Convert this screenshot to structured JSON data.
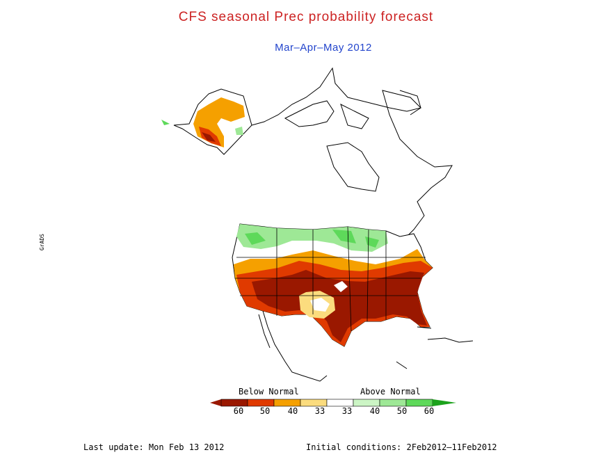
{
  "title": "CFS seasonal Prec probability forecast",
  "subtitle": "Mar–Apr–May 2012",
  "colors": {
    "title": "#cc2222",
    "subtitle": "#2244cc",
    "bn60": "#9a1800",
    "bn50": "#e03a00",
    "bn40": "#f5a000",
    "bn33": "#fbdc7e",
    "neutral": "#ffffff",
    "an33": "#ccf5c5",
    "an40": "#9ee896",
    "an50": "#5ed95a",
    "an60": "#1ca21c"
  },
  "legend": {
    "below_label": "Below Normal",
    "above_label": "Above Normal",
    "ticks": [
      "60",
      "50",
      "40",
      "33",
      "33",
      "40",
      "50",
      "60"
    ]
  },
  "side_text": "GrADS",
  "footer": {
    "last_update": "Last update: Mon Feb 13 2012",
    "initial_conditions": "Initial conditions: 2Feb2012–11Feb2012"
  }
}
